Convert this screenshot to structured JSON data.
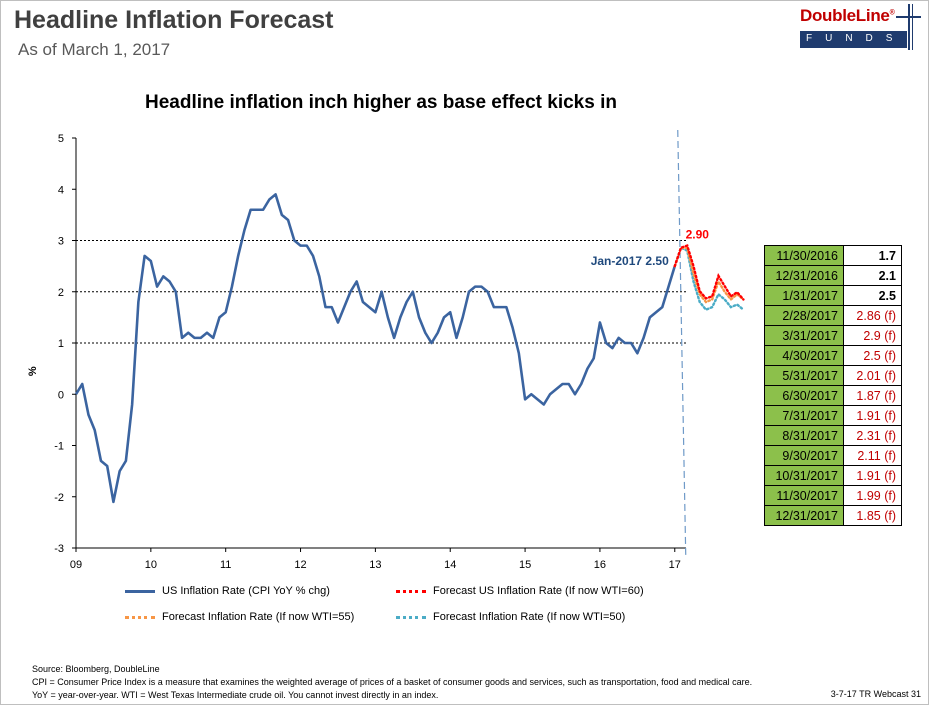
{
  "header": {
    "title": "Headline Inflation Forecast",
    "subtitle": "As of March 1, 2017",
    "logo_name": "DoubleLine",
    "logo_mark": "®",
    "logo_funds": "FUNDS"
  },
  "chart_heading": "Headline inflation inch higher as base effect kicks in",
  "chart_data": {
    "type": "line",
    "ylabel": "%",
    "ylim": [
      -3,
      5
    ],
    "yticks": [
      "5",
      "4",
      "3",
      "2",
      "1",
      "0",
      "-1",
      "-2",
      "-3"
    ],
    "xticks": [
      "09",
      "10",
      "11",
      "12",
      "13",
      "14",
      "15",
      "16",
      "17"
    ],
    "xlim": [
      2009.0,
      2017.15
    ],
    "reference_lines": [
      1,
      2,
      3
    ],
    "vertical_marker_x": 2017.12,
    "annotations": {
      "last_actual": "Jan-2017 2.50",
      "peak_forecast": "2.90"
    },
    "series": [
      {
        "name": "US Inflation Rate (CPI YoY % chg)",
        "color": "#3b64a0",
        "style": "solid",
        "values": [
          0.0,
          0.2,
          -0.4,
          -0.7,
          -1.3,
          -1.4,
          -2.1,
          -1.5,
          -1.3,
          -0.2,
          1.8,
          2.7,
          2.6,
          2.1,
          2.3,
          2.2,
          2.0,
          1.1,
          1.2,
          1.1,
          1.1,
          1.2,
          1.1,
          1.5,
          1.6,
          2.1,
          2.7,
          3.2,
          3.6,
          3.6,
          3.6,
          3.8,
          3.9,
          3.5,
          3.4,
          3.0,
          2.9,
          2.9,
          2.7,
          2.3,
          1.7,
          1.7,
          1.4,
          1.7,
          2.0,
          2.2,
          1.8,
          1.7,
          1.6,
          2.0,
          1.5,
          1.1,
          1.5,
          1.8,
          2.0,
          1.5,
          1.2,
          1.0,
          1.2,
          1.5,
          1.6,
          1.1,
          1.5,
          2.0,
          2.1,
          2.1,
          2.0,
          1.7,
          1.7,
          1.7,
          1.3,
          0.8,
          -0.1,
          0.0,
          -0.1,
          -0.2,
          0.0,
          0.1,
          0.2,
          0.2,
          0.0,
          0.2,
          0.5,
          0.7,
          1.4,
          1.0,
          0.9,
          1.1,
          1.0,
          1.0,
          0.8,
          1.1,
          1.5,
          1.6,
          1.7,
          2.1,
          2.5
        ]
      },
      {
        "name": "Forecast US Inflation Rate (If now WTI=60)",
        "color": "#ff0000",
        "style": "dotted",
        "values": [
          2.5,
          2.86,
          2.9,
          2.5,
          2.01,
          1.87,
          1.91,
          2.31,
          2.11,
          1.91,
          1.99,
          1.85
        ]
      },
      {
        "name": "Forecast Inflation Rate (If now WTI=55)",
        "color": "#f79646",
        "style": "dotted",
        "values": [
          2.5,
          2.86,
          2.85,
          2.35,
          1.95,
          1.8,
          1.85,
          2.2,
          2.0,
          1.85,
          1.95,
          1.85
        ]
      },
      {
        "name": "Forecast Inflation Rate (If now WTI=50)",
        "color": "#4bacc6",
        "style": "dotted",
        "values": [
          2.5,
          2.86,
          2.8,
          2.2,
          1.8,
          1.65,
          1.7,
          1.95,
          1.85,
          1.7,
          1.75,
          1.65
        ]
      }
    ]
  },
  "forecast_table": [
    {
      "date": "11/30/2016",
      "value": "1.7",
      "kind": "act"
    },
    {
      "date": "12/31/2016",
      "value": "2.1",
      "kind": "act"
    },
    {
      "date": "1/31/2017",
      "value": "2.5",
      "kind": "act"
    },
    {
      "date": "2/28/2017",
      "value": "2.86 (f)",
      "kind": "fc"
    },
    {
      "date": "3/31/2017",
      "value": "2.9 (f)",
      "kind": "fc"
    },
    {
      "date": "4/30/2017",
      "value": "2.5 (f)",
      "kind": "fc"
    },
    {
      "date": "5/31/2017",
      "value": "2.01 (f)",
      "kind": "fc"
    },
    {
      "date": "6/30/2017",
      "value": "1.87 (f)",
      "kind": "fc"
    },
    {
      "date": "7/31/2017",
      "value": "1.91 (f)",
      "kind": "fc"
    },
    {
      "date": "8/31/2017",
      "value": "2.31 (f)",
      "kind": "fc"
    },
    {
      "date": "9/30/2017",
      "value": "2.11 (f)",
      "kind": "fc"
    },
    {
      "date": "10/31/2017",
      "value": "1.91 (f)",
      "kind": "fc"
    },
    {
      "date": "11/30/2017",
      "value": "1.99 (f)",
      "kind": "fc"
    },
    {
      "date": "12/31/2017",
      "value": "1.85 (f)",
      "kind": "fc"
    }
  ],
  "footer": {
    "source": "Source: Bloomberg, DoubleLine",
    "note1": "CPI = Consumer Price Index is a measure that examines the weighted average of prices of a basket of consumer goods and services, such as transportation, food and medical care.",
    "note2": "YoY = year-over-year. WTI = West Texas Intermediate crude oil. You cannot invest directly in an index.",
    "page_ref": "3-7-17 TR Webcast 31"
  }
}
